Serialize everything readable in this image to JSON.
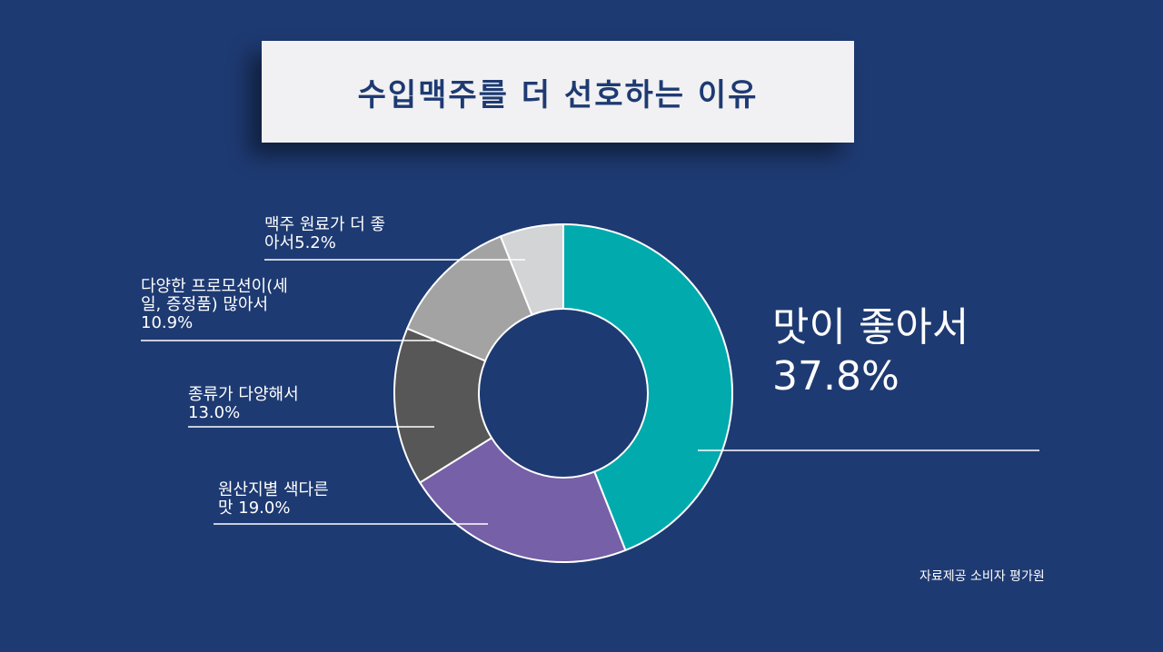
{
  "title": "수입맥주를 더 선호하는 이유",
  "source": "자료제공 소비자 평가원",
  "chart_data": {
    "type": "pie",
    "donut": true,
    "title": "수입맥주를 더 선호하는 이유",
    "slices": [
      {
        "label": "맛이 좋아서",
        "value": 37.8,
        "display": "맛이 좋아서\n 37.8%",
        "color": "#00aaad"
      },
      {
        "label": "원산지별 색다른 맛",
        "value": 19.0,
        "display": "원산지별 색다른\n맛 19.0%",
        "color": "#7660a7"
      },
      {
        "label": "종류가 다양해서",
        "value": 13.0,
        "display": "종류가 다양해서\n13.0%",
        "color": "#575757"
      },
      {
        "label": "다양한 프로모션이(세일, 증정품) 많아서",
        "value": 10.9,
        "display": "다양한 프로모션이(세\n일, 증정품) 많아서\n10.9%",
        "color": "#a3a3a3"
      },
      {
        "label": "맥주 원료가 더 좋아서",
        "value": 5.2,
        "display": "맥주 원료가 더 좋\n아서5.2%",
        "color": "#d3d4d6"
      }
    ]
  }
}
